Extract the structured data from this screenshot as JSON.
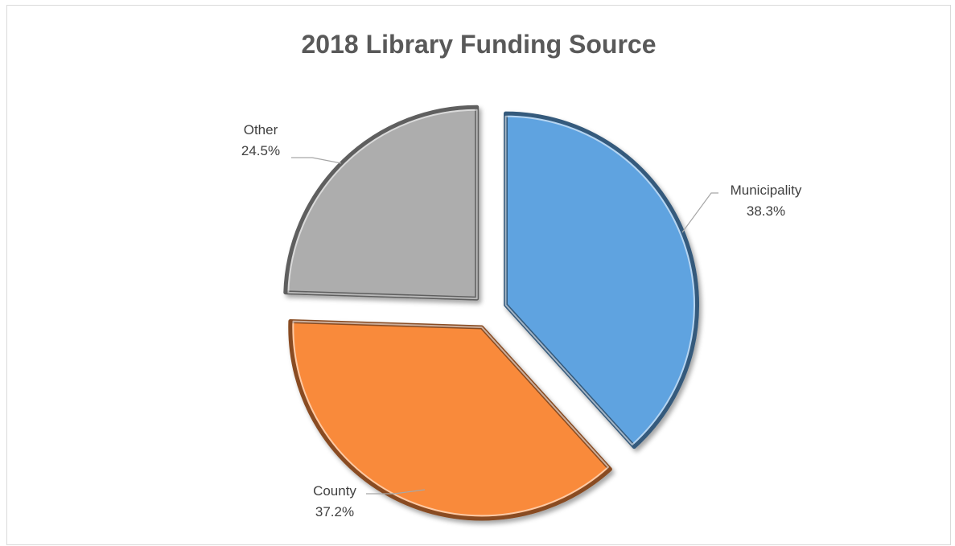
{
  "chart_data": {
    "type": "pie",
    "title": "2018 Library Funding Source",
    "categories": [
      "Municipality",
      "County",
      "Other"
    ],
    "values": [
      38.3,
      37.2,
      24.5
    ],
    "value_labels": [
      "38.3%",
      "37.2%",
      "24.5%"
    ],
    "colors": [
      "#5ea3e0",
      "#f98a3a",
      "#adadad"
    ],
    "exploded": true,
    "data_labels": "outside-with-leader-lines",
    "legend": "none"
  }
}
